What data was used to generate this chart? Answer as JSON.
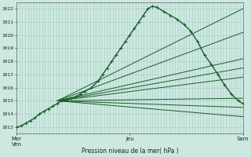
{
  "xlabel": "Pression niveau de la mer( hPa )",
  "background_color": "#cce8e0",
  "grid_color": "#a8ccc4",
  "line_color": "#1a5c28",
  "ylim": [
    1012.5,
    1022.5
  ],
  "yticks": [
    1013,
    1014,
    1015,
    1016,
    1017,
    1018,
    1019,
    1020,
    1021,
    1022
  ],
  "xtick_positions": [
    0,
    0.5,
    1.0
  ],
  "xtick_labels": [
    "Mer\nVen",
    "Jeu",
    "Sam"
  ],
  "main_line_x": [
    0.0,
    0.02,
    0.04,
    0.06,
    0.08,
    0.1,
    0.12,
    0.14,
    0.16,
    0.18,
    0.2,
    0.22,
    0.24,
    0.26,
    0.28,
    0.3,
    0.33,
    0.36,
    0.38,
    0.4,
    0.42,
    0.44,
    0.46,
    0.48,
    0.5,
    0.52,
    0.54,
    0.56,
    0.58,
    0.6,
    0.62,
    0.65,
    0.68,
    0.71,
    0.74,
    0.77,
    0.8,
    0.83,
    0.86,
    0.89,
    0.92,
    0.95,
    0.98,
    1.0
  ],
  "main_line_y": [
    1013.0,
    1013.1,
    1013.3,
    1013.5,
    1013.7,
    1014.0,
    1014.2,
    1014.4,
    1014.6,
    1014.8,
    1015.0,
    1015.1,
    1015.2,
    1015.3,
    1015.5,
    1015.7,
    1016.0,
    1016.5,
    1017.0,
    1017.5,
    1018.0,
    1018.5,
    1019.0,
    1019.5,
    1020.0,
    1020.5,
    1021.0,
    1021.5,
    1022.0,
    1022.2,
    1022.1,
    1021.8,
    1021.5,
    1021.2,
    1020.8,
    1020.3,
    1019.5,
    1018.5,
    1017.8,
    1017.0,
    1016.2,
    1015.5,
    1015.0,
    1014.8
  ],
  "forecast_lines": [
    {
      "x": [
        0.18,
        1.0
      ],
      "y": [
        1015.0,
        1022.0
      ]
    },
    {
      "x": [
        0.18,
        1.0
      ],
      "y": [
        1015.0,
        1020.2
      ]
    },
    {
      "x": [
        0.18,
        1.0
      ],
      "y": [
        1015.0,
        1018.2
      ]
    },
    {
      "x": [
        0.18,
        1.0
      ],
      "y": [
        1015.0,
        1017.5
      ]
    },
    {
      "x": [
        0.18,
        1.0
      ],
      "y": [
        1015.0,
        1016.8
      ]
    },
    {
      "x": [
        0.18,
        1.0
      ],
      "y": [
        1015.0,
        1015.2
      ]
    },
    {
      "x": [
        0.18,
        1.0
      ],
      "y": [
        1015.0,
        1014.5
      ]
    },
    {
      "x": [
        0.18,
        1.0
      ],
      "y": [
        1015.0,
        1013.8
      ]
    }
  ]
}
